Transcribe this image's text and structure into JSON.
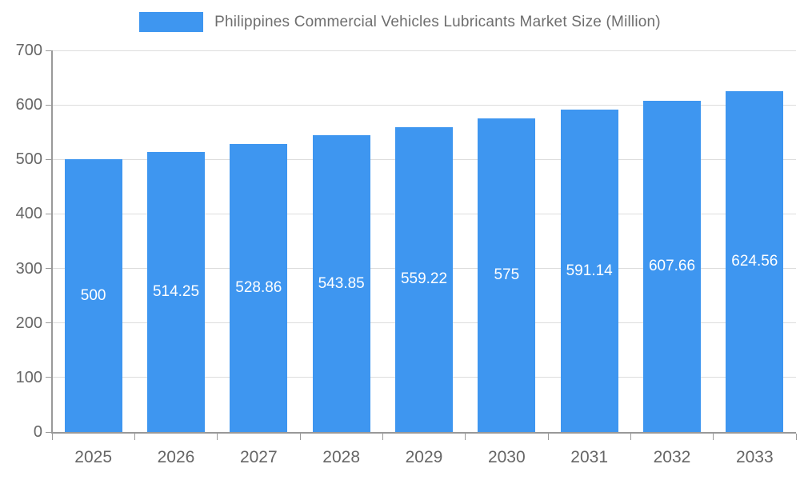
{
  "legend": {
    "title": "Philippines Commercial Vehicles Lubricants Market Size (Million)"
  },
  "colors": {
    "bar": "#3E96F0",
    "axis_text": "#666666",
    "grid": "#DDDDDD",
    "axis_line": "#999999",
    "value_label": "#FFFFFF"
  },
  "chart_data": {
    "type": "bar",
    "title": "Philippines Commercial Vehicles Lubricants Market Size (Million)",
    "categories": [
      "2025",
      "2026",
      "2027",
      "2028",
      "2029",
      "2030",
      "2031",
      "2032",
      "2033"
    ],
    "values": [
      500,
      514.25,
      528.86,
      543.85,
      559.22,
      575,
      591.14,
      607.66,
      624.56
    ],
    "value_labels": [
      "500",
      "514.25",
      "528.86",
      "543.85",
      "559.22",
      "575",
      "591.14",
      "607.66",
      "624.56"
    ],
    "xlabel": "",
    "ylabel": "",
    "ylim": [
      0,
      700
    ],
    "ytick_interval": 100,
    "grid": true,
    "legend_position": "top",
    "value_label_position": "center-of-bar"
  }
}
